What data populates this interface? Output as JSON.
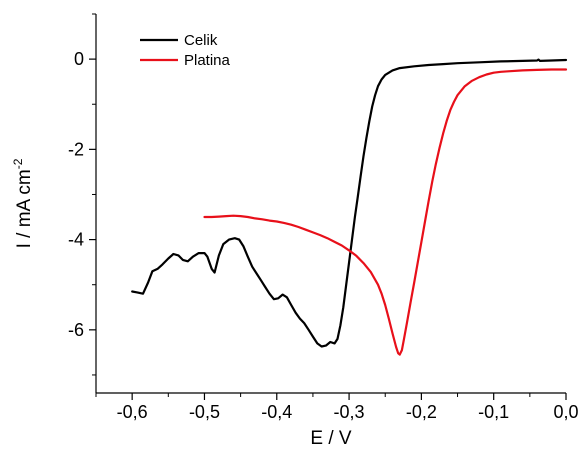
{
  "chart_data": {
    "type": "line",
    "xlabel": "E / V",
    "ylabel": {
      "main": "I / mA cm",
      "exponent": "-2"
    },
    "xlim": [
      -0.65,
      0.0
    ],
    "ylim": [
      -7.4,
      1.0
    ],
    "x_ticks": [
      {
        "value": -0.6,
        "label": "-0,6"
      },
      {
        "value": -0.5,
        "label": "-0,5"
      },
      {
        "value": -0.4,
        "label": "-0,4"
      },
      {
        "value": -0.3,
        "label": "-0,3"
      },
      {
        "value": -0.2,
        "label": "-0,2"
      },
      {
        "value": -0.1,
        "label": "-0,1"
      },
      {
        "value": 0.0,
        "label": "0,0"
      }
    ],
    "x_minor_ticks": [
      -0.65,
      -0.55,
      -0.45,
      -0.35,
      -0.25,
      -0.15,
      -0.05
    ],
    "y_ticks": [
      {
        "value": 0,
        "label": "0"
      },
      {
        "value": -2,
        "label": "-2"
      },
      {
        "value": -4,
        "label": "-4"
      },
      {
        "value": -6,
        "label": "-6"
      }
    ],
    "y_minor_ticks": [
      1,
      -1,
      -3,
      -5,
      -7
    ],
    "grid": false,
    "legend_position": "top-left",
    "series": [
      {
        "name": "Celik",
        "color": "#000000",
        "points": [
          [
            -0.6,
            -5.15
          ],
          [
            -0.593,
            -5.17
          ],
          [
            -0.585,
            -5.2
          ],
          [
            -0.578,
            -4.95
          ],
          [
            -0.572,
            -4.7
          ],
          [
            -0.565,
            -4.65
          ],
          [
            -0.558,
            -4.55
          ],
          [
            -0.55,
            -4.42
          ],
          [
            -0.543,
            -4.32
          ],
          [
            -0.536,
            -4.35
          ],
          [
            -0.53,
            -4.45
          ],
          [
            -0.523,
            -4.48
          ],
          [
            -0.516,
            -4.38
          ],
          [
            -0.508,
            -4.3
          ],
          [
            -0.5,
            -4.3
          ],
          [
            -0.496,
            -4.38
          ],
          [
            -0.49,
            -4.65
          ],
          [
            -0.486,
            -4.73
          ],
          [
            -0.48,
            -4.35
          ],
          [
            -0.474,
            -4.1
          ],
          [
            -0.466,
            -4.0
          ],
          [
            -0.458,
            -3.97
          ],
          [
            -0.452,
            -4.0
          ],
          [
            -0.446,
            -4.15
          ],
          [
            -0.44,
            -4.38
          ],
          [
            -0.434,
            -4.6
          ],
          [
            -0.428,
            -4.75
          ],
          [
            -0.422,
            -4.9
          ],
          [
            -0.416,
            -5.05
          ],
          [
            -0.41,
            -5.2
          ],
          [
            -0.404,
            -5.32
          ],
          [
            -0.398,
            -5.3
          ],
          [
            -0.392,
            -5.22
          ],
          [
            -0.386,
            -5.28
          ],
          [
            -0.38,
            -5.45
          ],
          [
            -0.374,
            -5.62
          ],
          [
            -0.368,
            -5.75
          ],
          [
            -0.362,
            -5.85
          ],
          [
            -0.356,
            -6.0
          ],
          [
            -0.35,
            -6.15
          ],
          [
            -0.344,
            -6.3
          ],
          [
            -0.338,
            -6.37
          ],
          [
            -0.332,
            -6.35
          ],
          [
            -0.326,
            -6.27
          ],
          [
            -0.32,
            -6.3
          ],
          [
            -0.316,
            -6.2
          ],
          [
            -0.312,
            -5.9
          ],
          [
            -0.308,
            -5.5
          ],
          [
            -0.304,
            -5.0
          ],
          [
            -0.3,
            -4.5
          ],
          [
            -0.296,
            -4.0
          ],
          [
            -0.292,
            -3.5
          ],
          [
            -0.288,
            -3.05
          ],
          [
            -0.284,
            -2.6
          ],
          [
            -0.28,
            -2.15
          ],
          [
            -0.276,
            -1.75
          ],
          [
            -0.272,
            -1.38
          ],
          [
            -0.268,
            -1.05
          ],
          [
            -0.264,
            -0.8
          ],
          [
            -0.26,
            -0.6
          ],
          [
            -0.255,
            -0.45
          ],
          [
            -0.25,
            -0.35
          ],
          [
            -0.24,
            -0.25
          ],
          [
            -0.23,
            -0.2
          ],
          [
            -0.21,
            -0.16
          ],
          [
            -0.19,
            -0.13
          ],
          [
            -0.17,
            -0.11
          ],
          [
            -0.15,
            -0.09
          ],
          [
            -0.12,
            -0.07
          ],
          [
            -0.09,
            -0.05
          ],
          [
            -0.06,
            -0.04
          ],
          [
            -0.04,
            -0.03
          ],
          [
            -0.038,
            -0.01
          ],
          [
            -0.036,
            -0.04
          ],
          [
            -0.02,
            -0.03
          ],
          [
            0.0,
            -0.02
          ]
        ]
      },
      {
        "name": "Platina",
        "color": "#e8101a",
        "points": [
          [
            -0.5,
            -3.5
          ],
          [
            -0.49,
            -3.5
          ],
          [
            -0.48,
            -3.49
          ],
          [
            -0.47,
            -3.48
          ],
          [
            -0.46,
            -3.47
          ],
          [
            -0.45,
            -3.48
          ],
          [
            -0.44,
            -3.5
          ],
          [
            -0.43,
            -3.53
          ],
          [
            -0.42,
            -3.55
          ],
          [
            -0.41,
            -3.58
          ],
          [
            -0.4,
            -3.6
          ],
          [
            -0.39,
            -3.63
          ],
          [
            -0.38,
            -3.67
          ],
          [
            -0.37,
            -3.72
          ],
          [
            -0.36,
            -3.78
          ],
          [
            -0.35,
            -3.84
          ],
          [
            -0.34,
            -3.9
          ],
          [
            -0.33,
            -3.97
          ],
          [
            -0.32,
            -4.05
          ],
          [
            -0.31,
            -4.13
          ],
          [
            -0.3,
            -4.24
          ],
          [
            -0.29,
            -4.36
          ],
          [
            -0.28,
            -4.52
          ],
          [
            -0.27,
            -4.72
          ],
          [
            -0.26,
            -5.0
          ],
          [
            -0.255,
            -5.2
          ],
          [
            -0.25,
            -5.45
          ],
          [
            -0.245,
            -5.75
          ],
          [
            -0.24,
            -6.08
          ],
          [
            -0.235,
            -6.38
          ],
          [
            -0.232,
            -6.52
          ],
          [
            -0.23,
            -6.55
          ],
          [
            -0.227,
            -6.45
          ],
          [
            -0.224,
            -6.2
          ],
          [
            -0.22,
            -5.85
          ],
          [
            -0.215,
            -5.4
          ],
          [
            -0.21,
            -4.95
          ],
          [
            -0.205,
            -4.5
          ],
          [
            -0.2,
            -4.05
          ],
          [
            -0.195,
            -3.6
          ],
          [
            -0.19,
            -3.15
          ],
          [
            -0.185,
            -2.72
          ],
          [
            -0.18,
            -2.33
          ],
          [
            -0.175,
            -1.97
          ],
          [
            -0.17,
            -1.65
          ],
          [
            -0.165,
            -1.37
          ],
          [
            -0.16,
            -1.13
          ],
          [
            -0.155,
            -0.95
          ],
          [
            -0.15,
            -0.8
          ],
          [
            -0.14,
            -0.6
          ],
          [
            -0.13,
            -0.48
          ],
          [
            -0.12,
            -0.4
          ],
          [
            -0.11,
            -0.34
          ],
          [
            -0.1,
            -0.3
          ],
          [
            -0.09,
            -0.28
          ],
          [
            -0.08,
            -0.27
          ],
          [
            -0.06,
            -0.25
          ],
          [
            -0.04,
            -0.24
          ],
          [
            -0.02,
            -0.23
          ],
          [
            0.0,
            -0.23
          ]
        ]
      }
    ]
  }
}
